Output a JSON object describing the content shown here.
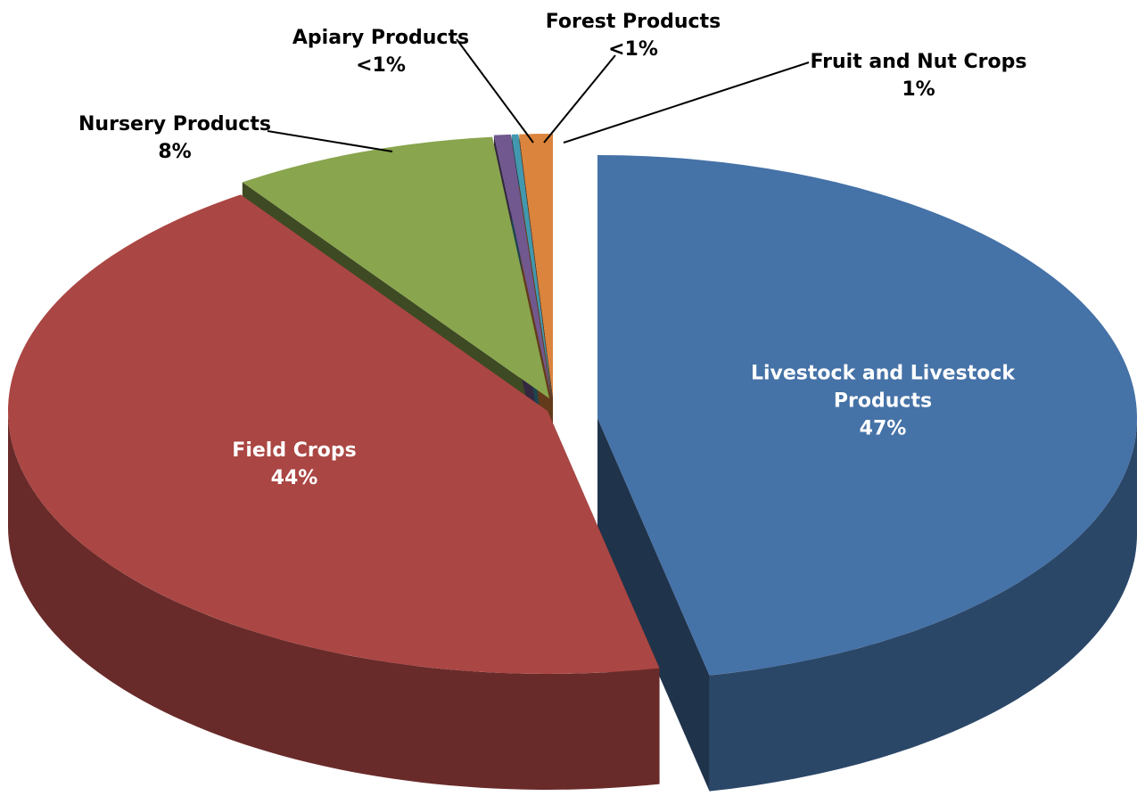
{
  "chart_data": {
    "type": "pie3d",
    "categories": [
      "Livestock and Livestock Products",
      "Field Crops",
      "Nursery Products",
      "Apiary Products",
      "Forest Products",
      "Fruit and Nut Crops"
    ],
    "values": [
      47,
      44,
      8,
      0.5,
      0.2,
      1
    ],
    "value_labels": [
      "47%",
      "44%",
      "8%",
      "<1%",
      "<1%",
      "1%"
    ],
    "colors": [
      "#4572a7",
      "#aa4643",
      "#89a54e",
      "#71588f",
      "#4198af",
      "#db843d"
    ]
  }
}
